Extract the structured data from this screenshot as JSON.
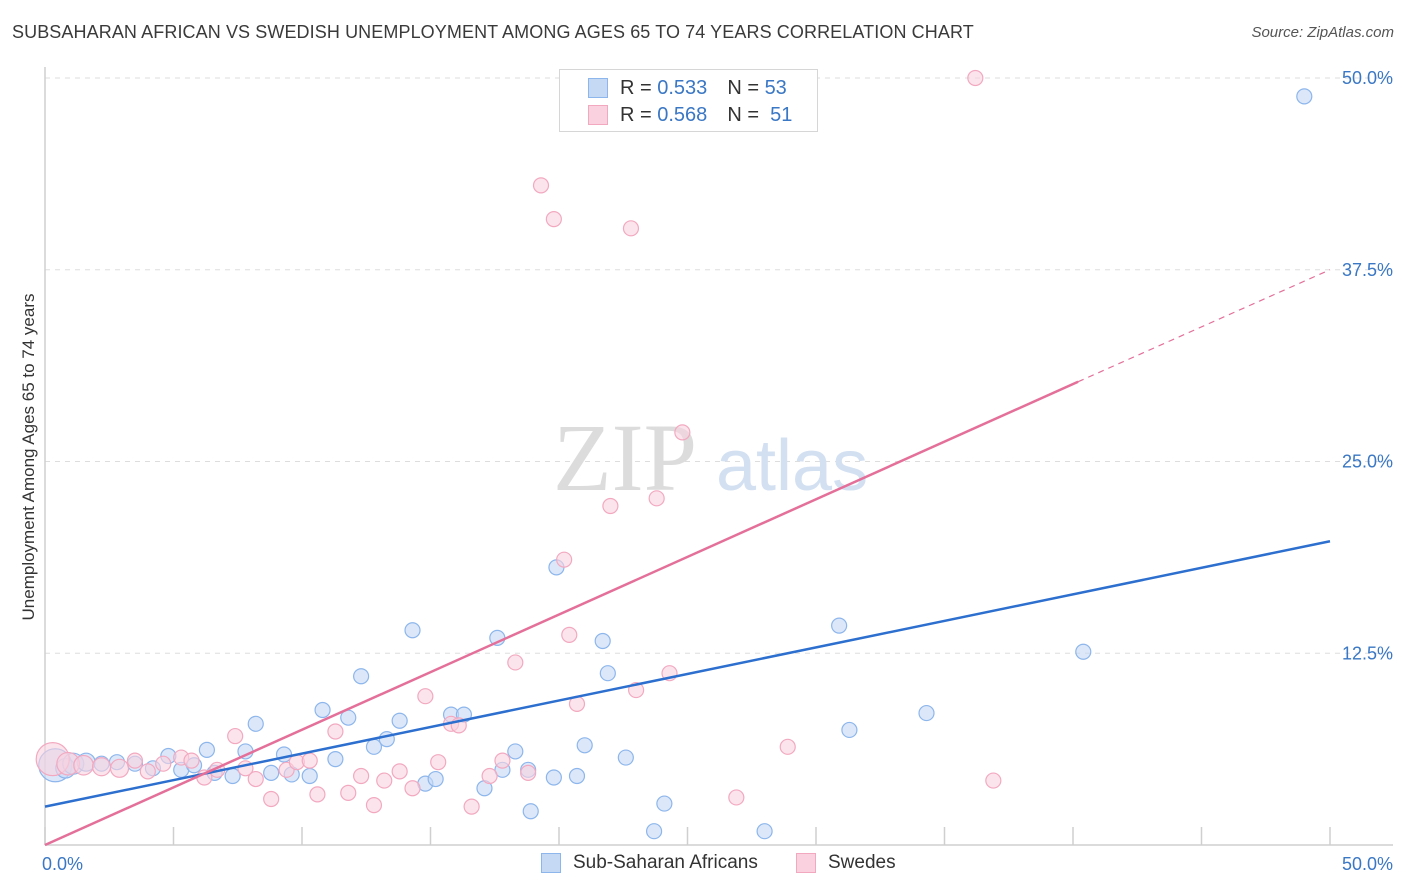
{
  "header": {
    "title": "SUBSAHARAN AFRICAN VS SWEDISH UNEMPLOYMENT AMONG AGES 65 TO 74 YEARS CORRELATION CHART",
    "source": "Source: ZipAtlas.com"
  },
  "watermark": {
    "part1": "ZIP",
    "part2": "atlas"
  },
  "legend": {
    "r_label": "R =",
    "n_label": "N =",
    "series": [
      {
        "name": "Sub-Saharan Africans",
        "r": "0.533",
        "n": "53",
        "color": "#8db6ec",
        "fill": "#c5d9f5",
        "line": "#2c6fcf"
      },
      {
        "name": "Swedes",
        "r": "0.568",
        "n": "51",
        "color": "#f2a9c0",
        "fill": "#fad2df",
        "line": "#e4709a"
      }
    ]
  },
  "chart_data": {
    "type": "scatter",
    "title": "SUBSAHARAN AFRICAN VS SWEDISH UNEMPLOYMENT AMONG AGES 65 TO 74 YEARS CORRELATION CHART",
    "xlabel": "",
    "ylabel": "Unemployment Among Ages 65 to 74 years",
    "xlim": [
      0,
      50
    ],
    "ylim": [
      0,
      50
    ],
    "x_tick_labels": [
      "0.0%",
      "50.0%"
    ],
    "y_ticks": [
      12.5,
      25.0,
      37.5,
      50.0
    ],
    "y_tick_labels": [
      "12.5%",
      "25.0%",
      "37.5%",
      "50.0%"
    ],
    "grid": "horizontal dashed",
    "series": [
      {
        "name": "Sub-Saharan Africans",
        "trend": {
          "x0": 0,
          "y0": 2.5,
          "x1": 50,
          "y1": 19.8
        },
        "points": [
          [
            0.4,
            5.2,
            2.2
          ],
          [
            0.8,
            5.0,
            1.3
          ],
          [
            1.1,
            5.3,
            1.4
          ],
          [
            1.6,
            5.4,
            1.2
          ],
          [
            2.2,
            5.3,
            1
          ],
          [
            2.8,
            5.4,
            1
          ],
          [
            3.5,
            5.3,
            1
          ],
          [
            4.2,
            5.0,
            1
          ],
          [
            4.8,
            5.8,
            1
          ],
          [
            5.3,
            4.9,
            1
          ],
          [
            5.8,
            5.2,
            1
          ],
          [
            6.3,
            6.2,
            1
          ],
          [
            6.6,
            4.7,
            1
          ],
          [
            7.3,
            4.5,
            1
          ],
          [
            7.8,
            6.1,
            1
          ],
          [
            8.2,
            7.9,
            1
          ],
          [
            8.8,
            4.7,
            1
          ],
          [
            9.3,
            5.9,
            1
          ],
          [
            9.6,
            4.6,
            1
          ],
          [
            10.3,
            4.5,
            1
          ],
          [
            10.8,
            8.8,
            1
          ],
          [
            11.3,
            5.6,
            1
          ],
          [
            11.8,
            8.3,
            1
          ],
          [
            12.3,
            11.0,
            1
          ],
          [
            12.8,
            6.4,
            1
          ],
          [
            13.3,
            6.9,
            1
          ],
          [
            13.8,
            8.1,
            1
          ],
          [
            14.3,
            14.0,
            1
          ],
          [
            14.8,
            4.0,
            1
          ],
          [
            15.2,
            4.3,
            1
          ],
          [
            15.8,
            8.5,
            1
          ],
          [
            16.3,
            8.5,
            1
          ],
          [
            17.1,
            3.7,
            1
          ],
          [
            17.6,
            13.5,
            1
          ],
          [
            17.8,
            4.9,
            1
          ],
          [
            18.3,
            6.1,
            1
          ],
          [
            18.8,
            4.9,
            1
          ],
          [
            18.9,
            2.2,
            1
          ],
          [
            19.8,
            4.4,
            1
          ],
          [
            19.9,
            18.1,
            1
          ],
          [
            20.7,
            4.5,
            1
          ],
          [
            21.0,
            6.5,
            1
          ],
          [
            21.7,
            13.3,
            1
          ],
          [
            21.9,
            11.2,
            1
          ],
          [
            22.6,
            5.7,
            1
          ],
          [
            23.7,
            0.9,
            1
          ],
          [
            24.1,
            2.7,
            1
          ],
          [
            28.0,
            0.9,
            1
          ],
          [
            30.9,
            14.3,
            1
          ],
          [
            31.3,
            7.5,
            1
          ],
          [
            34.3,
            8.6,
            1
          ],
          [
            40.4,
            12.6,
            1
          ],
          [
            49.0,
            48.8,
            1
          ]
        ]
      },
      {
        "name": "Swedes",
        "trend": {
          "x0": 0,
          "y0": 0,
          "x1": 40.2,
          "y1": 30.2,
          "dash_x1": 50,
          "dash_y1": 37.5
        },
        "points": [
          [
            0.3,
            5.6,
            2.2
          ],
          [
            0.9,
            5.3,
            1.5
          ],
          [
            1.5,
            5.2,
            1.3
          ],
          [
            2.2,
            5.1,
            1.2
          ],
          [
            2.9,
            5.0,
            1.2
          ],
          [
            3.5,
            5.5,
            1
          ],
          [
            4.0,
            4.8,
            1
          ],
          [
            4.6,
            5.3,
            1
          ],
          [
            5.3,
            5.7,
            1
          ],
          [
            5.7,
            5.5,
            1
          ],
          [
            6.2,
            4.4,
            1
          ],
          [
            6.7,
            4.9,
            1
          ],
          [
            7.4,
            7.1,
            1
          ],
          [
            7.8,
            5.0,
            1
          ],
          [
            8.2,
            4.3,
            1
          ],
          [
            8.8,
            3.0,
            1
          ],
          [
            9.4,
            4.9,
            1
          ],
          [
            9.8,
            5.4,
            1
          ],
          [
            10.3,
            5.5,
            1
          ],
          [
            10.6,
            3.3,
            1
          ],
          [
            11.3,
            7.4,
            1
          ],
          [
            11.8,
            3.4,
            1
          ],
          [
            12.3,
            4.5,
            1
          ],
          [
            12.8,
            2.6,
            1
          ],
          [
            13.2,
            4.2,
            1
          ],
          [
            13.8,
            4.8,
            1
          ],
          [
            14.3,
            3.7,
            1
          ],
          [
            14.8,
            9.7,
            1
          ],
          [
            15.3,
            5.4,
            1
          ],
          [
            15.8,
            7.9,
            1
          ],
          [
            16.1,
            7.8,
            1
          ],
          [
            16.6,
            2.5,
            1
          ],
          [
            17.3,
            4.5,
            1
          ],
          [
            17.8,
            5.5,
            1
          ],
          [
            18.3,
            11.9,
            1
          ],
          [
            18.8,
            4.7,
            1
          ],
          [
            19.3,
            43.0,
            1
          ],
          [
            19.8,
            40.8,
            1
          ],
          [
            20.2,
            18.6,
            1
          ],
          [
            20.4,
            13.7,
            1
          ],
          [
            20.7,
            9.2,
            1
          ],
          [
            22.0,
            22.1,
            1
          ],
          [
            22.8,
            40.2,
            1
          ],
          [
            23.0,
            10.1,
            1
          ],
          [
            23.8,
            22.6,
            1
          ],
          [
            24.3,
            11.2,
            1
          ],
          [
            24.8,
            26.9,
            1
          ],
          [
            26.9,
            3.1,
            1
          ],
          [
            28.9,
            6.4,
            1
          ],
          [
            36.2,
            50.0,
            1
          ],
          [
            36.9,
            4.2,
            1
          ]
        ]
      }
    ]
  }
}
